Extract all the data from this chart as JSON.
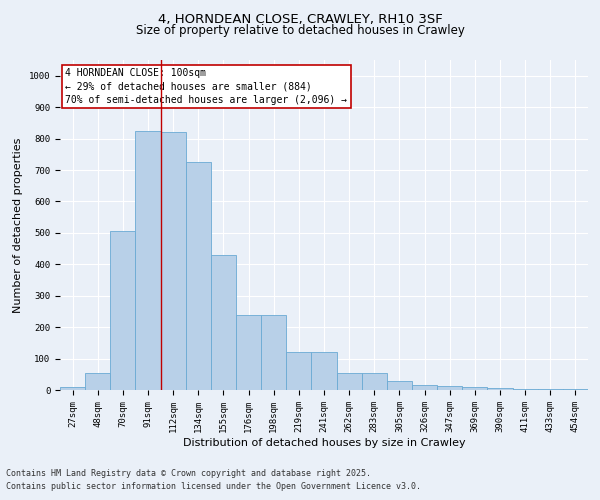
{
  "title_line1": "4, HORNDEAN CLOSE, CRAWLEY, RH10 3SF",
  "title_line2": "Size of property relative to detached houses in Crawley",
  "xlabel": "Distribution of detached houses by size in Crawley",
  "ylabel": "Number of detached properties",
  "categories": [
    "27sqm",
    "48sqm",
    "70sqm",
    "91sqm",
    "112sqm",
    "134sqm",
    "155sqm",
    "176sqm",
    "198sqm",
    "219sqm",
    "241sqm",
    "262sqm",
    "283sqm",
    "305sqm",
    "326sqm",
    "347sqm",
    "369sqm",
    "390sqm",
    "411sqm",
    "433sqm",
    "454sqm"
  ],
  "values": [
    10,
    55,
    505,
    825,
    820,
    725,
    430,
    240,
    240,
    120,
    120,
    55,
    55,
    30,
    15,
    12,
    8,
    6,
    4,
    4,
    2
  ],
  "bar_color": "#b8d0e8",
  "bar_edge_color": "#6aaad4",
  "vline_x": 3.5,
  "vline_color": "#c00000",
  "annotation_text": "4 HORNDEAN CLOSE: 100sqm\n← 29% of detached houses are smaller (884)\n70% of semi-detached houses are larger (2,096) →",
  "annotation_box_color": "#ffffff",
  "annotation_box_edge_color": "#c00000",
  "ylim": [
    0,
    1050
  ],
  "yticks": [
    0,
    100,
    200,
    300,
    400,
    500,
    600,
    700,
    800,
    900,
    1000
  ],
  "footer_line1": "Contains HM Land Registry data © Crown copyright and database right 2025.",
  "footer_line2": "Contains public sector information licensed under the Open Government Licence v3.0.",
  "bg_color": "#eaf0f8",
  "plot_bg_color": "#eaf0f8",
  "grid_color": "#ffffff",
  "title_fontsize": 9.5,
  "subtitle_fontsize": 8.5,
  "axis_label_fontsize": 8,
  "tick_fontsize": 6.5,
  "annotation_fontsize": 7,
  "footer_fontsize": 6
}
